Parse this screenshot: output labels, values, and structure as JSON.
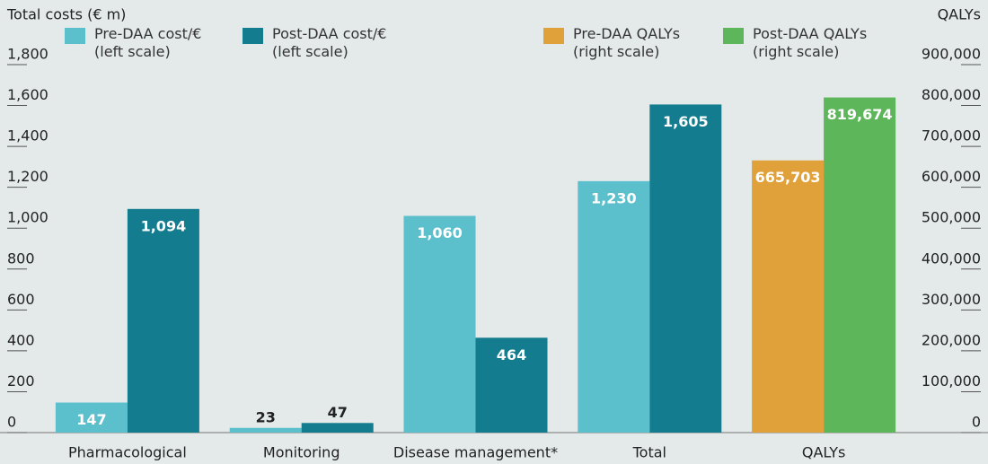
{
  "chart_data": {
    "type": "bar",
    "y_label": "Total costs (€ m)",
    "y2_label": "QALYs",
    "categories": [
      "Pharmacological",
      "Monitoring",
      "Disease management*",
      "Total",
      "QALYs"
    ],
    "series": [
      {
        "name": "Pre-DAA cost/€\n(left scale)",
        "color": "#5bbfcc",
        "values": [
          147,
          23,
          1060,
          1230,
          null
        ],
        "value_labels": [
          "147",
          "23",
          "1,060",
          "1,230",
          null
        ]
      },
      {
        "name": "Post-DAA cost/€\n(left scale)",
        "color": "#137c8e",
        "values": [
          1094,
          47,
          464,
          1605,
          null
        ],
        "value_labels": [
          "1,094",
          "47",
          "464",
          "1,605",
          null
        ]
      },
      {
        "name": "Pre-DAA QALYs\n(right scale)",
        "color": "#e0a03a",
        "axis": "y2",
        "values": [
          null,
          null,
          null,
          null,
          665703
        ],
        "value_labels": [
          null,
          null,
          null,
          null,
          "665,703"
        ]
      },
      {
        "name": "Post-DAA QALYs\n(right scale)",
        "color": "#5db65a",
        "axis": "y2",
        "values": [
          null,
          null,
          null,
          null,
          819674
        ],
        "value_labels": [
          null,
          null,
          null,
          null,
          "819,674"
        ]
      }
    ],
    "ylim": [
      0,
      1800
    ],
    "yticks": [
      0,
      200,
      400,
      600,
      800,
      {
        "value": 1000,
        "label": "1,000"
      },
      {
        "value": 1200,
        "label": "1,200"
      },
      {
        "value": 1400,
        "label": "1,400"
      },
      {
        "value": 1600,
        "label": "1,600"
      },
      {
        "value": 1800,
        "label": "1,800"
      }
    ],
    "y2lim": [
      0,
      900000
    ],
    "y2ticks": [
      0,
      {
        "value": 100000,
        "label": "100,000"
      },
      {
        "value": 200000,
        "label": "200,000"
      },
      {
        "value": 300000,
        "label": "300,000"
      },
      {
        "value": 400000,
        "label": "400,000"
      },
      {
        "value": 500000,
        "label": "500,000"
      },
      {
        "value": 600000,
        "label": "600,000"
      },
      {
        "value": 700000,
        "label": "700,000"
      },
      {
        "value": 800000,
        "label": "800,000"
      },
      {
        "value": 900000,
        "label": "900,000"
      }
    ],
    "grid": false
  }
}
